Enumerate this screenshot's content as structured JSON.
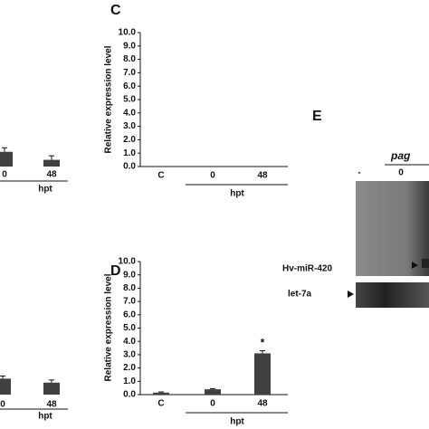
{
  "chart_data": [
    {
      "type": "bar",
      "categories": [
        "0",
        "48"
      ],
      "values": [
        1.1,
        0.5
      ],
      "errors": [
        0.3,
        0.3
      ],
      "ylim": [
        0,
        10
      ],
      "xlabel": "hpt",
      "color": "#404040"
    },
    {
      "type": "bar",
      "categories": [
        "0",
        "48"
      ],
      "values": [
        1.2,
        0.9
      ],
      "errors": [
        0.2,
        0.2
      ],
      "ylim": [
        0,
        10
      ],
      "xlabel": "hpt",
      "color": "#404040"
    },
    {
      "type": "bar",
      "panel_label": "C",
      "categories": [
        "C",
        "0",
        "48"
      ],
      "values": [
        0,
        0,
        0
      ],
      "ylim": [
        0,
        10
      ],
      "yticks": [
        {
          "value": 0,
          "label": "0.0"
        },
        {
          "value": 1,
          "label": "1.0"
        },
        {
          "value": 2,
          "label": "2.0"
        },
        {
          "value": 3,
          "label": "3.0"
        },
        {
          "value": 4,
          "label": "4.0"
        },
        {
          "value": 5,
          "label": "5.0"
        },
        {
          "value": 6,
          "label": "6.0"
        },
        {
          "value": 7,
          "label": "7.0"
        },
        {
          "value": 8,
          "label": "8.0"
        },
        {
          "value": 9,
          "label": "9.0"
        },
        {
          "value": 10,
          "label": "10.0"
        }
      ],
      "ylabel": "Relative expression level",
      "xlabel": "hpt",
      "color": "#404040"
    },
    {
      "type": "bar",
      "panel_label": "D",
      "categories": [
        "C",
        "0",
        "48"
      ],
      "values": [
        0.15,
        0.4,
        3.1
      ],
      "errors": [
        0.05,
        0.05,
        0.2
      ],
      "significance": [
        null,
        null,
        "*"
      ],
      "ylim": [
        0,
        10
      ],
      "yticks": [
        {
          "value": 0,
          "label": "0.0"
        },
        {
          "value": 1,
          "label": "1.0"
        },
        {
          "value": 2,
          "label": "2.0"
        },
        {
          "value": 3,
          "label": "3.0"
        },
        {
          "value": 4,
          "label": "4.0"
        },
        {
          "value": 5,
          "label": "5.0"
        },
        {
          "value": 6,
          "label": "6.0"
        },
        {
          "value": 7,
          "label": "7.0"
        },
        {
          "value": 8,
          "label": "8.0"
        },
        {
          "value": 9,
          "label": "9.0"
        },
        {
          "value": 10,
          "label": "10.0"
        }
      ],
      "ylabel": "Relative expression level",
      "xlabel": "hpt",
      "color": "#404040"
    }
  ],
  "panel_e": {
    "panel_label": "E",
    "group_label": "pag",
    "lanes": [
      "-",
      "0"
    ],
    "bands": [
      "Hv-miR-420",
      "let-7a"
    ]
  }
}
